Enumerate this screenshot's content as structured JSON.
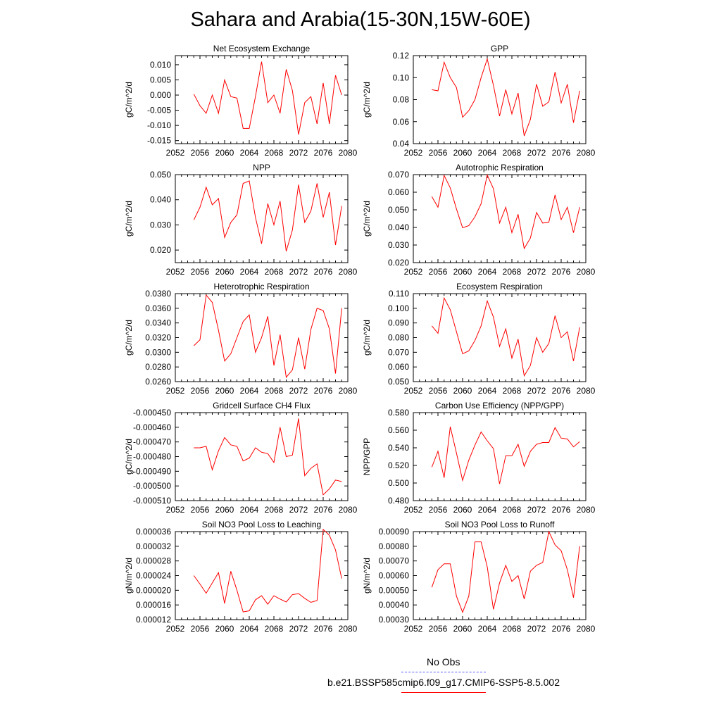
{
  "title": "Sahara and Arabia(15-30N,15W-60E)",
  "colors": {
    "model": "#ff0000",
    "obs": "#0000ff",
    "axis": "#000000"
  },
  "legend": {
    "obs_label": "No Obs",
    "model_label": "b.e21.BSSP585cmip6.f09_g17.CMIP6-SSP5-8.5.002"
  },
  "chart_data": [
    {
      "type": "line",
      "title": "Net Ecosystem Exchange",
      "ylabel": "gC/m^2/d",
      "xlim": [
        2052,
        2080
      ],
      "ylim": [
        -0.016,
        0.013
      ],
      "xticks": [
        "2052",
        "2056",
        "2060",
        "2064",
        "2068",
        "2072",
        "2076",
        "2080"
      ],
      "yticks": [
        "-0.015",
        "-0.010",
        "-0.005",
        "0.000",
        "0.005",
        "0.010"
      ],
      "series": [
        {
          "x": [
            2055,
            2056,
            2057,
            2058,
            2059,
            2060,
            2061,
            2062,
            2063,
            2064,
            2065,
            2066,
            2067,
            2068,
            2069,
            2070,
            2071,
            2072,
            2073,
            2074,
            2075,
            2076,
            2077,
            2078,
            2079
          ],
          "values": [
            0.0003,
            -0.0035,
            -0.006,
            0.0,
            -0.006,
            0.005,
            -0.0005,
            -0.001,
            -0.011,
            -0.011,
            -0.0005,
            0.011,
            -0.0025,
            0.0,
            -0.006,
            0.0085,
            0.0015,
            -0.013,
            -0.0025,
            -0.0005,
            -0.0095,
            0.004,
            -0.0095,
            0.0065,
            0.0
          ]
        }
      ]
    },
    {
      "type": "line",
      "title": "GPP",
      "ylabel": "gC/m^2/d",
      "xlim": [
        2052,
        2080
      ],
      "ylim": [
        0.04,
        0.12
      ],
      "xticks": [
        "2052",
        "2056",
        "2060",
        "2064",
        "2068",
        "2072",
        "2076",
        "2080"
      ],
      "yticks": [
        "0.04",
        "0.06",
        "0.08",
        "0.10",
        "0.12"
      ],
      "series": [
        {
          "x": [
            2055,
            2056,
            2057,
            2058,
            2059,
            2060,
            2061,
            2062,
            2063,
            2064,
            2065,
            2066,
            2067,
            2068,
            2069,
            2070,
            2071,
            2072,
            2073,
            2074,
            2075,
            2076,
            2077,
            2078,
            2079
          ],
          "values": [
            0.089,
            0.088,
            0.114,
            0.1,
            0.091,
            0.064,
            0.07,
            0.08,
            0.1,
            0.117,
            0.093,
            0.065,
            0.089,
            0.067,
            0.086,
            0.047,
            0.062,
            0.094,
            0.074,
            0.078,
            0.105,
            0.077,
            0.094,
            0.059,
            0.088
          ]
        }
      ]
    },
    {
      "type": "line",
      "title": "NPP",
      "ylabel": "gC/m^2/d",
      "xlim": [
        2052,
        2080
      ],
      "ylim": [
        0.015,
        0.05
      ],
      "xticks": [
        "2052",
        "2056",
        "2060",
        "2064",
        "2068",
        "2072",
        "2076",
        "2080"
      ],
      "yticks": [
        "0.020",
        "0.030",
        "0.040",
        "0.050"
      ],
      "series": [
        {
          "x": [
            2055,
            2056,
            2057,
            2058,
            2059,
            2060,
            2061,
            2062,
            2063,
            2064,
            2065,
            2066,
            2067,
            2068,
            2069,
            2070,
            2071,
            2072,
            2073,
            2074,
            2075,
            2076,
            2077,
            2078,
            2079
          ],
          "values": [
            0.032,
            0.037,
            0.045,
            0.038,
            0.0405,
            0.025,
            0.031,
            0.034,
            0.0465,
            0.0475,
            0.033,
            0.0225,
            0.0385,
            0.03,
            0.0395,
            0.0195,
            0.028,
            0.046,
            0.031,
            0.0355,
            0.0465,
            0.033,
            0.043,
            0.022,
            0.0375
          ]
        }
      ]
    },
    {
      "type": "line",
      "title": "Autotrophic Respiration",
      "ylabel": "gC/m^2/d",
      "xlim": [
        2052,
        2080
      ],
      "ylim": [
        0.02,
        0.07
      ],
      "xticks": [
        "2052",
        "2056",
        "2060",
        "2064",
        "2068",
        "2072",
        "2076",
        "2080"
      ],
      "yticks": [
        "0.020",
        "0.030",
        "0.040",
        "0.050",
        "0.060",
        "0.070"
      ],
      "series": [
        {
          "x": [
            2055,
            2056,
            2057,
            2058,
            2059,
            2060,
            2061,
            2062,
            2063,
            2064,
            2065,
            2066,
            2067,
            2068,
            2069,
            2070,
            2071,
            2072,
            2073,
            2074,
            2075,
            2076,
            2077,
            2078,
            2079
          ],
          "values": [
            0.0575,
            0.0515,
            0.0695,
            0.0625,
            0.0505,
            0.0398,
            0.041,
            0.046,
            0.0535,
            0.0698,
            0.062,
            0.0425,
            0.0515,
            0.037,
            0.0475,
            0.028,
            0.034,
            0.0485,
            0.0425,
            0.043,
            0.0585,
            0.0445,
            0.0515,
            0.037,
            0.0515
          ]
        }
      ]
    },
    {
      "type": "line",
      "title": "Heterotrophic Respiration",
      "ylabel": "gC/m^2/d",
      "xlim": [
        2052,
        2080
      ],
      "ylim": [
        0.026,
        0.038
      ],
      "xticks": [
        "2052",
        "2056",
        "2060",
        "2064",
        "2068",
        "2072",
        "2076",
        "2080"
      ],
      "yticks": [
        "0.0260",
        "0.0280",
        "0.0300",
        "0.0320",
        "0.0340",
        "0.0360",
        "0.0380"
      ],
      "series": [
        {
          "x": [
            2055,
            2056,
            2057,
            2058,
            2059,
            2060,
            2061,
            2062,
            2063,
            2064,
            2065,
            2066,
            2067,
            2068,
            2069,
            2070,
            2071,
            2072,
            2073,
            2074,
            2075,
            2076,
            2077,
            2078,
            2079
          ],
          "values": [
            0.0309,
            0.0317,
            0.0378,
            0.0368,
            0.033,
            0.0288,
            0.0298,
            0.032,
            0.0342,
            0.0351,
            0.03,
            0.032,
            0.0349,
            0.0282,
            0.0324,
            0.0266,
            0.0276,
            0.032,
            0.0277,
            0.0331,
            0.036,
            0.0357,
            0.0332,
            0.0271,
            0.036
          ]
        }
      ]
    },
    {
      "type": "line",
      "title": "Ecosystem Respiration",
      "ylabel": "gC/m^2/d",
      "xlim": [
        2052,
        2080
      ],
      "ylim": [
        0.05,
        0.11
      ],
      "xticks": [
        "2052",
        "2056",
        "2060",
        "2064",
        "2068",
        "2072",
        "2076",
        "2080"
      ],
      "yticks": [
        "0.050",
        "0.060",
        "0.070",
        "0.080",
        "0.090",
        "0.100",
        "0.110"
      ],
      "series": [
        {
          "x": [
            2055,
            2056,
            2057,
            2058,
            2059,
            2060,
            2061,
            2062,
            2063,
            2064,
            2065,
            2066,
            2067,
            2068,
            2069,
            2070,
            2071,
            2072,
            2073,
            2074,
            2075,
            2076,
            2077,
            2078,
            2079
          ],
          "values": [
            0.088,
            0.083,
            0.107,
            0.099,
            0.084,
            0.069,
            0.071,
            0.078,
            0.088,
            0.105,
            0.094,
            0.074,
            0.086,
            0.066,
            0.079,
            0.054,
            0.061,
            0.08,
            0.07,
            0.076,
            0.095,
            0.08,
            0.084,
            0.064,
            0.087
          ]
        }
      ]
    },
    {
      "type": "line",
      "title": "Gridcell Surface CH4 Flux",
      "ylabel": "gC/m^2/d",
      "xlim": [
        2052,
        2080
      ],
      "ylim": [
        -0.00051,
        -0.00045
      ],
      "xticks": [
        "2052",
        "2056",
        "2060",
        "2064",
        "2068",
        "2072",
        "2076",
        "2080"
      ],
      "yticks": [
        "-0.000510",
        "-0.000500",
        "-0.000490",
        "-0.000480",
        "-0.000470",
        "-0.000460",
        "-0.000450"
      ],
      "series": [
        {
          "x": [
            2055,
            2056,
            2057,
            2058,
            2059,
            2060,
            2061,
            2062,
            2063,
            2064,
            2065,
            2066,
            2067,
            2068,
            2069,
            2070,
            2071,
            2072,
            2073,
            2074,
            2075,
            2076,
            2077,
            2078,
            2079
          ],
          "values": [
            -0.000474,
            -0.000474,
            -0.000473,
            -0.000489,
            -0.000476,
            -0.000467,
            -0.000472,
            -0.000473,
            -0.000483,
            -0.000481,
            -0.000474,
            -0.000477,
            -0.000478,
            -0.000484,
            -0.00046,
            -0.00048,
            -0.000479,
            -0.000454,
            -0.000493,
            -0.000488,
            -0.000485,
            -0.000506,
            -0.000502,
            -0.000496,
            -0.000497
          ]
        }
      ]
    },
    {
      "type": "line",
      "title": "Carbon Use Efficiency (NPP/GPP)",
      "ylabel": "NPP/GPP",
      "xlim": [
        2052,
        2080
      ],
      "ylim": [
        0.48,
        0.58
      ],
      "xticks": [
        "2052",
        "2056",
        "2060",
        "2064",
        "2068",
        "2072",
        "2076",
        "2080"
      ],
      "yticks": [
        "0.480",
        "0.500",
        "0.520",
        "0.540",
        "0.560",
        "0.580"
      ],
      "series": [
        {
          "x": [
            2055,
            2056,
            2057,
            2058,
            2059,
            2060,
            2061,
            2062,
            2063,
            2064,
            2065,
            2066,
            2067,
            2068,
            2069,
            2070,
            2071,
            2072,
            2073,
            2074,
            2075,
            2076,
            2077,
            2078,
            2079
          ],
          "values": [
            0.518,
            0.536,
            0.506,
            0.564,
            0.534,
            0.503,
            0.526,
            0.543,
            0.558,
            0.548,
            0.539,
            0.499,
            0.531,
            0.531,
            0.544,
            0.519,
            0.536,
            0.544,
            0.546,
            0.546,
            0.563,
            0.551,
            0.55,
            0.541,
            0.547
          ]
        }
      ]
    },
    {
      "type": "line",
      "title": "Soil NO3 Pool Loss to Leaching",
      "ylabel": "gN/m^2/d",
      "xlim": [
        2052,
        2080
      ],
      "ylim": [
        1.2e-05,
        3.6e-05
      ],
      "xticks": [
        "2052",
        "2056",
        "2060",
        "2064",
        "2068",
        "2072",
        "2076",
        "2080"
      ],
      "yticks": [
        "0.000012",
        "0.000016",
        "0.000020",
        "0.000024",
        "0.000028",
        "0.000032",
        "0.000036"
      ],
      "series": [
        {
          "x": [
            2055,
            2056,
            2057,
            2058,
            2059,
            2060,
            2061,
            2062,
            2063,
            2064,
            2065,
            2066,
            2067,
            2068,
            2069,
            2070,
            2071,
            2072,
            2073,
            2074,
            2075,
            2076,
            2077,
            2078,
            2079
          ],
          "values": [
            2.4e-05,
            2.17e-05,
            1.92e-05,
            2.2e-05,
            2.48e-05,
            1.64e-05,
            2.52e-05,
            2e-05,
            1.41e-05,
            1.44e-05,
            1.74e-05,
            1.85e-05,
            1.62e-05,
            1.85e-05,
            1.76e-05,
            1.68e-05,
            1.88e-05,
            1.91e-05,
            1.78e-05,
            1.67e-05,
            1.72e-05,
            3.66e-05,
            3.5e-05,
            3.1e-05,
            2.32e-05
          ]
        }
      ]
    },
    {
      "type": "line",
      "title": "Soil NO3 Pool Loss to Runoff",
      "ylabel": "gN/m^2/d",
      "xlim": [
        2052,
        2080
      ],
      "ylim": [
        0.0003,
        0.0009
      ],
      "xticks": [
        "2052",
        "2056",
        "2060",
        "2064",
        "2068",
        "2072",
        "2076",
        "2080"
      ],
      "yticks": [
        "0.00030",
        "0.00040",
        "0.00050",
        "0.00060",
        "0.00070",
        "0.00080",
        "0.00090"
      ],
      "series": [
        {
          "x": [
            2055,
            2056,
            2057,
            2058,
            2059,
            2060,
            2061,
            2062,
            2063,
            2064,
            2065,
            2066,
            2067,
            2068,
            2069,
            2070,
            2071,
            2072,
            2073,
            2074,
            2075,
            2076,
            2077,
            2078,
            2079
          ],
          "values": [
            0.00052,
            0.00064,
            0.00068,
            0.00068,
            0.00046,
            0.00035,
            0.00046,
            0.00083,
            0.00083,
            0.00066,
            0.00037,
            0.00055,
            0.00067,
            0.00056,
            0.0006,
            0.00044,
            0.00063,
            0.00067,
            0.00069,
            0.0009,
            0.00081,
            0.00077,
            0.00064,
            0.00045,
            0.0008
          ]
        }
      ]
    }
  ]
}
